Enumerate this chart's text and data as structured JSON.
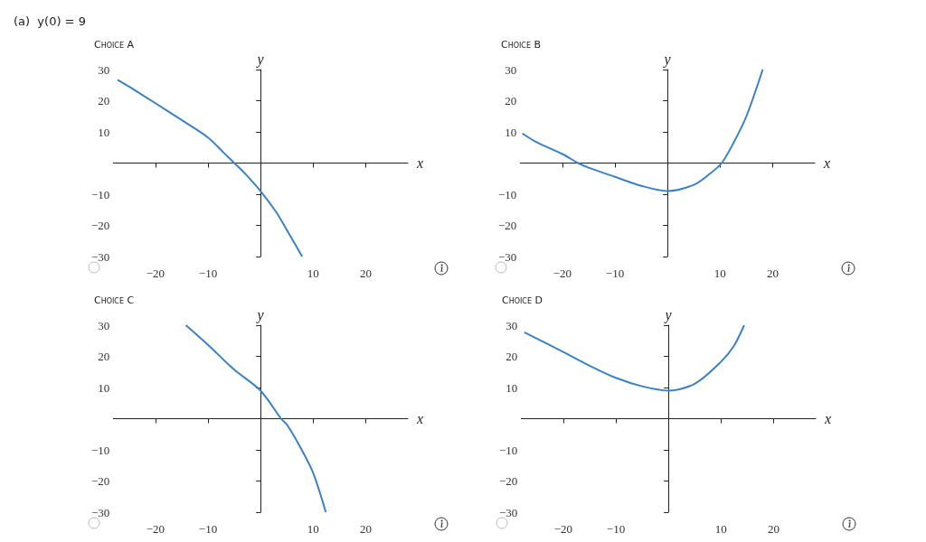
{
  "chart_data": [
    {
      "type": "line",
      "title": "Choice A",
      "xlabel": "x",
      "ylabel": "y",
      "annotations": [
        "(a)  y(0) = 9"
      ],
      "xlim": [
        -28,
        28
      ],
      "ylim": [
        -30,
        30
      ],
      "xticks": [
        -20,
        -10,
        10,
        20
      ],
      "yticks": [
        -30,
        -20,
        -10,
        10,
        20,
        30
      ],
      "series": [
        {
          "color": "#3b82c4",
          "x": [
            -27.2,
            -25,
            -20,
            -15,
            -10,
            -7,
            -5,
            -3,
            0,
            3,
            5,
            7.9
          ],
          "values": [
            26.7,
            24.5,
            19.2,
            13.8,
            8.2,
            3.3,
            0,
            -3.3,
            -9,
            -15.8,
            -21.5,
            -30
          ]
        }
      ]
    },
    {
      "type": "line",
      "title": "Choice B",
      "xlabel": "x",
      "ylabel": "y",
      "xlim": [
        -28,
        28
      ],
      "ylim": [
        -30,
        30
      ],
      "xticks": [
        -20,
        -10,
        10,
        20
      ],
      "yticks": [
        -30,
        -20,
        -10,
        10,
        20,
        30
      ],
      "series": [
        {
          "color": "#3b82c4",
          "x": [
            -27.6,
            -25,
            -20,
            -17,
            -15,
            -10,
            -5,
            0,
            5,
            8,
            10.3,
            12.5,
            15,
            18.1
          ],
          "values": [
            9.5,
            6.8,
            2.9,
            0,
            -1.5,
            -4.4,
            -7.3,
            -9,
            -7,
            -3.5,
            0,
            6.3,
            15,
            30
          ]
        }
      ]
    },
    {
      "type": "line",
      "title": "Choice C",
      "xlabel": "x",
      "ylabel": "y",
      "xlim": [
        -28,
        28
      ],
      "ylim": [
        -30,
        30
      ],
      "xticks": [
        -20,
        -10,
        10,
        20
      ],
      "yticks": [
        -30,
        -20,
        -10,
        10,
        20,
        30
      ],
      "series": [
        {
          "color": "#3b82c4",
          "x": [
            -14.2,
            -10,
            -5,
            0,
            3.9,
            5,
            7.5,
            10,
            12.4
          ],
          "values": [
            30,
            23.7,
            15.7,
            9,
            0,
            -1.9,
            -9,
            -17.4,
            -30
          ]
        }
      ]
    },
    {
      "type": "line",
      "title": "Choice D",
      "xlabel": "x",
      "ylabel": "y",
      "xlim": [
        -28,
        28
      ],
      "ylim": [
        -30,
        30
      ],
      "xticks": [
        -20,
        -10,
        10,
        20
      ],
      "yticks": [
        -30,
        -20,
        -10,
        10,
        20,
        30
      ],
      "series": [
        {
          "color": "#3b82c4",
          "x": [
            -27.4,
            -20,
            -15,
            -10,
            -5,
            0,
            5,
            10,
            12.5,
            14.4
          ],
          "values": [
            27.7,
            21.4,
            17,
            13.1,
            10.4,
            9,
            11.2,
            18.3,
            23.5,
            30
          ]
        }
      ]
    }
  ]
}
